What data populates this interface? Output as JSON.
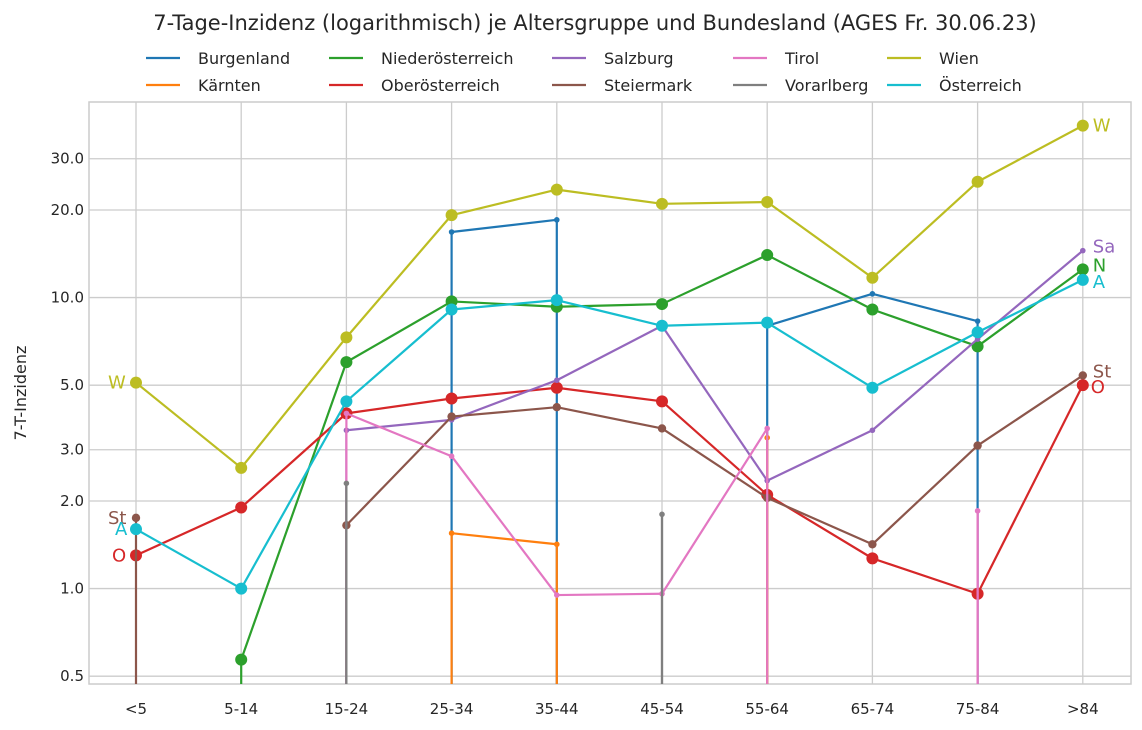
{
  "chart_data": {
    "type": "line",
    "title": "7-Tage-Inzidenz (logarithmisch) je Altersgruppe und Bundesland (AGES Fr. 30.06.23)",
    "xlabel": "",
    "ylabel": "7-T-Inzidenz",
    "yscale": "log",
    "ylim": [
      0.47,
      47
    ],
    "grid": true,
    "legend_position": "top",
    "categories": [
      "<5",
      "5-14",
      "15-24",
      "25-34",
      "35-44",
      "45-54",
      "55-64",
      "65-74",
      "75-84",
      ">84"
    ],
    "yticks": [
      0.5,
      1.0,
      2.0,
      3.0,
      5.0,
      10.0,
      20.0,
      30.0
    ],
    "ytick_labels": [
      "0.5",
      "1.0",
      "2.0",
      "3.0",
      "5.0",
      "10.0",
      "20.0",
      "30.0"
    ],
    "series": [
      {
        "name": "Burgenland",
        "color": "#1f77b4",
        "marker": "small",
        "values": [
          0,
          0,
          0,
          16.8,
          18.5,
          0,
          8.0,
          10.3,
          8.3,
          0
        ],
        "end_label": ""
      },
      {
        "name": "Kärnten",
        "color": "#ff7f0e",
        "marker": "small",
        "values": [
          0,
          0,
          0,
          1.55,
          1.42,
          0,
          3.3,
          0,
          0,
          0
        ],
        "end_label": ""
      },
      {
        "name": "Niederösterreich",
        "color": "#2ca02c",
        "marker": "large",
        "values": [
          0,
          0.57,
          6.0,
          9.7,
          9.3,
          9.5,
          14.0,
          9.1,
          6.8,
          12.5
        ],
        "end_label": "N"
      },
      {
        "name": "Oberösterreich",
        "color": "#d62728",
        "marker": "large",
        "values": [
          1.3,
          1.9,
          4.0,
          4.5,
          4.9,
          4.4,
          2.1,
          1.27,
          0.96,
          5.0
        ],
        "end_label": "O"
      },
      {
        "name": "Salzburg",
        "color": "#9467bd",
        "marker": "small",
        "values": [
          0,
          0,
          3.5,
          3.8,
          5.2,
          8.0,
          2.35,
          3.5,
          7.2,
          14.5
        ],
        "end_label": "Sa"
      },
      {
        "name": "Steiermark",
        "color": "#8c564b",
        "marker": "medium",
        "values": [
          1.75,
          0,
          1.65,
          3.9,
          4.2,
          3.55,
          2.05,
          1.42,
          3.1,
          5.4
        ],
        "end_label": "St"
      },
      {
        "name": "Tirol",
        "color": "#e377c2",
        "marker": "small",
        "values": [
          0,
          0,
          4.0,
          2.85,
          0.95,
          0.96,
          3.55,
          0,
          1.85,
          0
        ],
        "end_label": ""
      },
      {
        "name": "Vorarlberg",
        "color": "#7f7f7f",
        "marker": "small",
        "values": [
          0,
          0,
          2.3,
          0,
          0,
          1.8,
          0,
          0,
          0,
          0
        ],
        "end_label": ""
      },
      {
        "name": "Wien",
        "color": "#bcbd22",
        "marker": "large",
        "values": [
          5.1,
          2.6,
          7.3,
          19.2,
          23.5,
          21.0,
          21.3,
          11.7,
          25.0,
          39.0
        ],
        "end_label": "W"
      },
      {
        "name": "Österreich",
        "color": "#17becf",
        "marker": "large",
        "values": [
          1.6,
          1.0,
          4.4,
          9.1,
          9.8,
          8.0,
          8.2,
          4.9,
          7.6,
          11.5
        ],
        "end_label": "A"
      }
    ]
  }
}
